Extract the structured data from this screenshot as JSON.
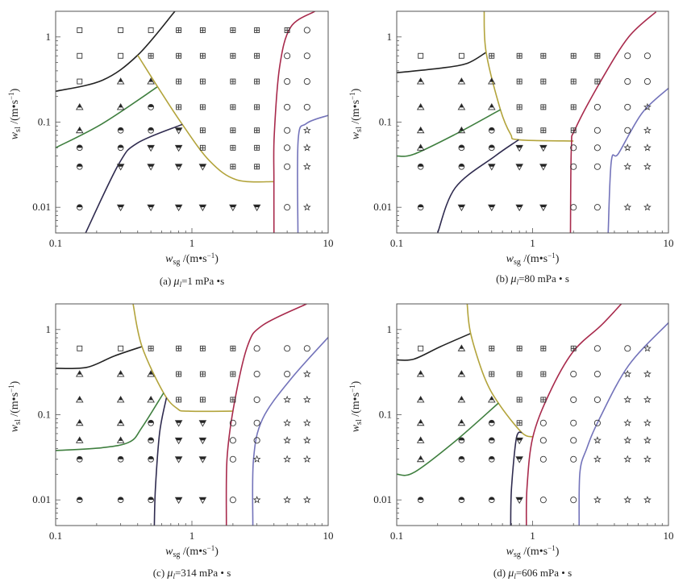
{
  "figure": {
    "marker_types": {
      "S": "open-square",
      "P": "square-with-plus",
      "T": "half-filled-up-triangle",
      "H": "half-filled-circle",
      "D": "half-filled-down-triangle",
      "O": "open-circle",
      "R": "open-star"
    },
    "x_values": [
      0.15,
      0.3,
      0.5,
      0.8,
      1.2,
      2,
      3,
      5,
      7
    ],
    "line_colors": {
      "black": "#222222",
      "olive": "#b3a43c",
      "green": "#3f7f3f",
      "navy": "#2f2b4f",
      "crimson": "#a82a4c",
      "blue": "#7373ba"
    }
  },
  "chart_data": [
    {
      "type": "scatter",
      "xscale": "log",
      "yscale": "log",
      "xlim": [
        0.1,
        10
      ],
      "ylim": [
        0.005,
        2
      ],
      "xticks": [
        "0.1",
        "1",
        "10"
      ],
      "yticks": [
        "1",
        "0.1",
        "0.01"
      ],
      "xlabel": {
        "var": "w",
        "sub": "sg",
        "unit": "/(m•s",
        "sup": "−1",
        "close": ")"
      },
      "ylabel": {
        "var": "w",
        "sub": "sl",
        "unit": "/(m•s",
        "sup": "−1",
        "close": ")"
      },
      "caption": {
        "tag": "(a) ",
        "sym": "μ",
        "sub": "l",
        "value": "=1 mPa •s"
      },
      "rows": [
        {
          "y": 1.2,
          "markers": "SSSPPPPPO"
        },
        {
          "y": 0.6,
          "markers": "SSPPPPPOO"
        },
        {
          "y": 0.3,
          "markers": "STTPPPPOO"
        },
        {
          "y": 0.15,
          "markers": "TTHPPPPOO"
        },
        {
          "y": 0.08,
          "markers": "THHDPPPOR"
        },
        {
          "y": 0.05,
          "markers": "HHDDPPPOR"
        },
        {
          "y": 0.03,
          "markers": "HDDDDPPOR"
        },
        {
          "y": 0.01,
          "markers": "HDDDDDDOR"
        }
      ],
      "boundaries": [
        {
          "color": "black",
          "points": [
            [
              0.1,
              0.23
            ],
            [
              0.22,
              0.31
            ],
            [
              0.4,
              0.61
            ],
            [
              0.75,
              2.0
            ]
          ]
        },
        {
          "color": "green",
          "points": [
            [
              0.1,
              0.05
            ],
            [
              0.22,
              0.096
            ],
            [
              0.56,
              0.26
            ]
          ]
        },
        {
          "color": "olive",
          "points": [
            [
              0.4,
              0.61
            ],
            [
              0.56,
              0.26
            ],
            [
              0.85,
              0.094
            ],
            [
              1.35,
              0.035
            ],
            [
              2.13,
              0.021
            ],
            [
              4.0,
              0.02
            ]
          ]
        },
        {
          "color": "navy",
          "points": [
            [
              0.166,
              0.005
            ],
            [
              0.29,
              0.032
            ],
            [
              0.4,
              0.057
            ],
            [
              0.85,
              0.094
            ]
          ]
        },
        {
          "color": "crimson",
          "points": [
            [
              4.0,
              0.005
            ],
            [
              4.0,
              0.02
            ],
            [
              4.02,
              0.07
            ],
            [
              4.4,
              0.44
            ],
            [
              5.3,
              1.3
            ],
            [
              8.0,
              2.0
            ]
          ]
        },
        {
          "color": "blue",
          "points": [
            [
              6.0,
              0.005
            ],
            [
              6.02,
              0.062
            ],
            [
              6.9,
              0.096
            ],
            [
              10,
              0.12
            ]
          ]
        }
      ]
    },
    {
      "type": "scatter",
      "xscale": "log",
      "yscale": "log",
      "xlim": [
        0.1,
        10
      ],
      "ylim": [
        0.005,
        2
      ],
      "xticks": [
        "0.1",
        "1",
        "10"
      ],
      "yticks": [
        "1",
        "0.1",
        "0.01"
      ],
      "xlabel": {
        "var": "w",
        "sub": "sg",
        "unit": "/(m•s",
        "sup": "−1",
        "close": ")"
      },
      "ylabel": {
        "var": "w",
        "sub": "sl",
        "unit": "/(m•s",
        "sup": "−1",
        "close": ")"
      },
      "caption": {
        "tag": "(b) ",
        "sym": "μ",
        "sub": "l",
        "value": "=80 mPa • s"
      },
      "rows": [
        {
          "y": 0.6,
          "markers": "SSPPPPPOO"
        },
        {
          "y": 0.3,
          "markers": "TTTPPPPOO"
        },
        {
          "y": 0.15,
          "markers": "TTTPPPOOR"
        },
        {
          "y": 0.08,
          "markers": "TTHPPPOOR"
        },
        {
          "y": 0.05,
          "markers": "THHDDOORR"
        },
        {
          "y": 0.03,
          "markers": "HHDDDOORR"
        },
        {
          "y": 0.01,
          "markers": "HDDDDOORR"
        }
      ],
      "boundaries": [
        {
          "color": "black",
          "points": [
            [
              0.1,
              0.38
            ],
            [
              0.21,
              0.43
            ],
            [
              0.33,
              0.49
            ],
            [
              0.455,
              0.66
            ]
          ]
        },
        {
          "color": "olive",
          "points": [
            [
              0.44,
              2.0
            ],
            [
              0.455,
              0.66
            ],
            [
              0.58,
              0.14
            ],
            [
              0.69,
              0.072
            ],
            [
              0.79,
              0.062
            ],
            [
              2.0,
              0.06
            ]
          ]
        },
        {
          "color": "green",
          "points": [
            [
              0.1,
              0.04
            ],
            [
              0.134,
              0.042
            ],
            [
              0.27,
              0.072
            ],
            [
              0.58,
              0.14
            ]
          ]
        },
        {
          "color": "navy",
          "points": [
            [
              0.2,
              0.005
            ],
            [
              0.27,
              0.017
            ],
            [
              0.53,
              0.04
            ],
            [
              0.79,
              0.062
            ]
          ]
        },
        {
          "color": "crimson",
          "points": [
            [
              1.9,
              0.005
            ],
            [
              1.93,
              0.05
            ],
            [
              2.06,
              0.083
            ],
            [
              3.2,
              0.31
            ],
            [
              5.1,
              1.0
            ],
            [
              8.1,
              1.97
            ]
          ]
        },
        {
          "color": "blue",
          "points": [
            [
              3.6,
              0.005
            ],
            [
              3.8,
              0.035
            ],
            [
              4.3,
              0.043
            ],
            [
              6.4,
              0.128
            ],
            [
              10,
              0.25
            ]
          ]
        }
      ]
    },
    {
      "type": "scatter",
      "xscale": "log",
      "yscale": "log",
      "xlim": [
        0.1,
        10
      ],
      "ylim": [
        0.005,
        2
      ],
      "xticks": [
        "0.1",
        "1",
        "10"
      ],
      "yticks": [
        "1",
        "0.1",
        "0.01"
      ],
      "xlabel": {
        "var": "w",
        "sub": "sg",
        "unit": "/(m•s",
        "sup": "−1",
        "close": ")"
      },
      "ylabel": {
        "var": "w",
        "sub": "sl",
        "unit": "/(m•s",
        "sup": "−1",
        "close": ")"
      },
      "caption": {
        "tag": "(c) ",
        "sym": "μ",
        "sub": "l",
        "value": "=314 mPa • s"
      },
      "rows": [
        {
          "y": 0.6,
          "markers": "SSPPPPOOO"
        },
        {
          "y": 0.3,
          "markers": "TTTPPPOOR"
        },
        {
          "y": 0.15,
          "markers": "TTTPPPORR"
        },
        {
          "y": 0.08,
          "markers": "TTHDDOORR"
        },
        {
          "y": 0.05,
          "markers": "TTHDDOORR"
        },
        {
          "y": 0.03,
          "markers": "HHHDDORRR"
        },
        {
          "y": 0.01,
          "markers": "HHHDDORRR"
        }
      ],
      "boundaries": [
        {
          "color": "black",
          "points": [
            [
              0.1,
              0.35
            ],
            [
              0.17,
              0.36
            ],
            [
              0.27,
              0.49
            ],
            [
              0.43,
              0.63
            ]
          ]
        },
        {
          "color": "olive",
          "points": [
            [
              0.37,
              2.0
            ],
            [
              0.43,
              0.63
            ],
            [
              0.62,
              0.18
            ],
            [
              0.78,
              0.118
            ],
            [
              0.94,
              0.11
            ],
            [
              1.99,
              0.11
            ]
          ]
        },
        {
          "color": "green",
          "points": [
            [
              0.1,
              0.038
            ],
            [
              0.22,
              0.041
            ],
            [
              0.35,
              0.048
            ],
            [
              0.43,
              0.071
            ],
            [
              0.62,
              0.18
            ]
          ]
        },
        {
          "color": "navy",
          "points": [
            [
              0.53,
              0.005
            ],
            [
              0.54,
              0.014
            ],
            [
              0.58,
              0.062
            ],
            [
              0.65,
              0.158
            ]
          ]
        },
        {
          "color": "crimson",
          "points": [
            [
              1.79,
              0.005
            ],
            [
              1.81,
              0.03
            ],
            [
              2.03,
              0.127
            ],
            [
              2.55,
              0.63
            ],
            [
              3.3,
              1.12
            ],
            [
              6.95,
              2.0
            ]
          ]
        },
        {
          "color": "blue",
          "points": [
            [
              2.8,
              0.005
            ],
            [
              2.83,
              0.03
            ],
            [
              3.3,
              0.089
            ],
            [
              5.3,
              0.26
            ],
            [
              10,
              0.81
            ]
          ]
        }
      ]
    },
    {
      "type": "scatter",
      "xscale": "log",
      "yscale": "log",
      "xlim": [
        0.1,
        10
      ],
      "ylim": [
        0.005,
        2
      ],
      "xticks": [
        "0.1",
        "1",
        "10"
      ],
      "yticks": [
        "1",
        "0.1",
        "0.01"
      ],
      "xlabel": {
        "var": "w",
        "sub": "sg",
        "unit": "/(m•s",
        "sup": "−1",
        "close": ")"
      },
      "ylabel": {
        "var": "w",
        "sub": "sl",
        "unit": "/(m•s",
        "sup": "−1",
        "close": ")"
      },
      "caption": {
        "tag": "(d) ",
        "sym": "μ",
        "sub": "l",
        "value": "=606 mPa • s"
      },
      "rows": [
        {
          "y": 0.6,
          "markers": "STPPPPOOR"
        },
        {
          "y": 0.3,
          "markers": "TTPPPOORR"
        },
        {
          "y": 0.15,
          "markers": "TTTPPOORR"
        },
        {
          "y": 0.08,
          "markers": "TTHPOOORR"
        },
        {
          "y": 0.05,
          "markers": "THHDOORRR"
        },
        {
          "y": 0.03,
          "markers": "THHDOORRR"
        },
        {
          "y": 0.01,
          "markers": "HHHDOORRR"
        }
      ],
      "boundaries": [
        {
          "color": "black",
          "points": [
            [
              0.1,
              0.44
            ],
            [
              0.134,
              0.45
            ],
            [
              0.21,
              0.63
            ],
            [
              0.35,
              0.9
            ]
          ]
        },
        {
          "color": "olive",
          "points": [
            [
              0.33,
              2.0
            ],
            [
              0.35,
              0.9
            ],
            [
              0.44,
              0.28
            ],
            [
              0.56,
              0.137
            ],
            [
              0.83,
              0.062
            ],
            [
              1.0,
              0.055
            ]
          ]
        },
        {
          "color": "green",
          "points": [
            [
              0.1,
              0.02
            ],
            [
              0.134,
              0.021
            ],
            [
              0.27,
              0.049
            ],
            [
              0.56,
              0.137
            ]
          ]
        },
        {
          "color": "navy",
          "points": [
            [
              0.69,
              0.005
            ],
            [
              0.7,
              0.014
            ],
            [
              0.76,
              0.053
            ],
            [
              0.83,
              0.062
            ]
          ]
        },
        {
          "color": "crimson",
          "points": [
            [
              0.9,
              0.005
            ],
            [
              0.91,
              0.014
            ],
            [
              1.0,
              0.053
            ],
            [
              1.31,
              0.17
            ],
            [
              1.97,
              0.54
            ],
            [
              3.2,
              1.12
            ],
            [
              4.5,
              2.0
            ]
          ]
        },
        {
          "color": "blue",
          "points": [
            [
              2.2,
              0.005
            ],
            [
              2.23,
              0.021
            ],
            [
              2.5,
              0.04
            ],
            [
              3.1,
              0.089
            ],
            [
              5.1,
              0.38
            ],
            [
              10,
              1.2
            ]
          ]
        }
      ]
    }
  ]
}
